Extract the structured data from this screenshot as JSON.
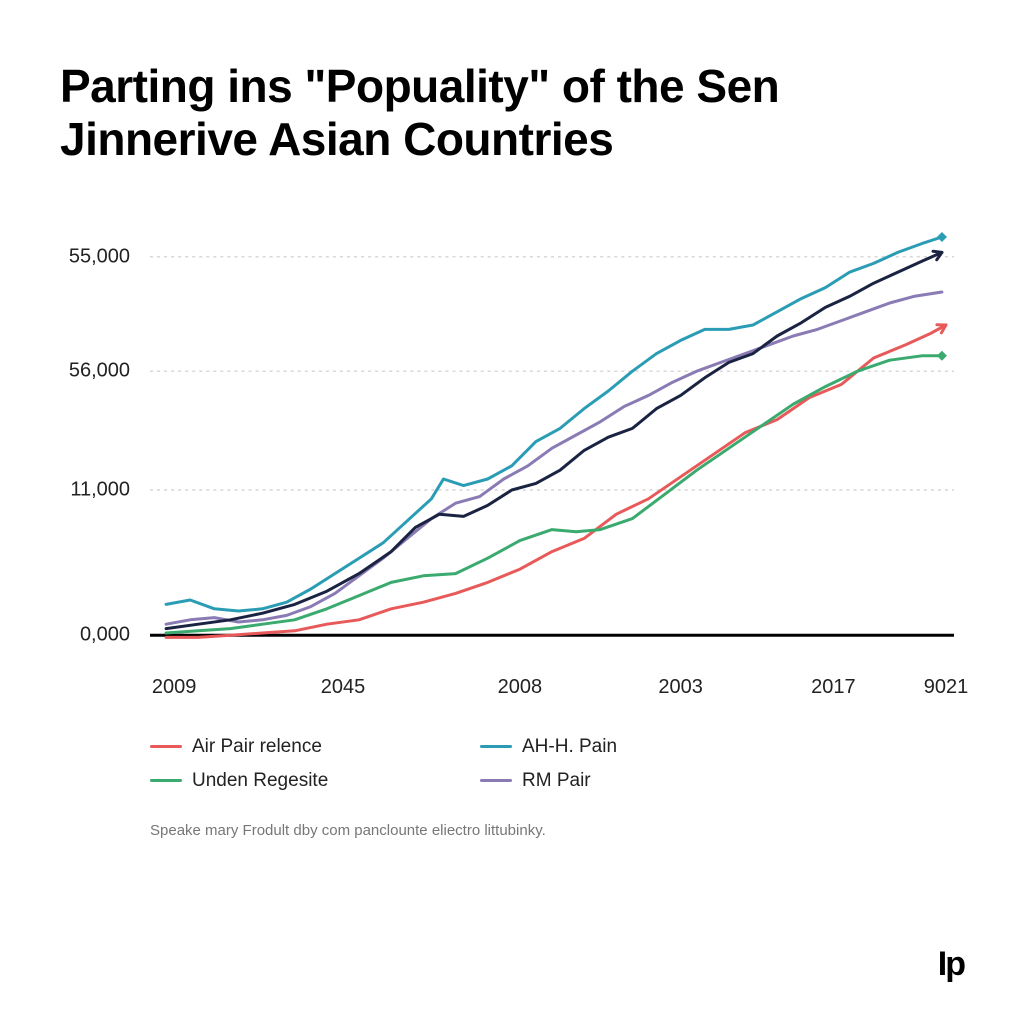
{
  "title": "Parting ins \"Popuality\" of the Sen Jinnerive Asian Countries",
  "chart": {
    "type": "line",
    "background_color": "#ffffff",
    "grid_color": "#cccccc",
    "grid_dash": "3,4",
    "axis_color": "#000000",
    "axis_width": 3,
    "title_fontsize": 46,
    "label_fontsize": 20,
    "line_width": 3,
    "y_axis": {
      "ticks": [
        {
          "pos": 0.07,
          "label": "55,000"
        },
        {
          "pos": 0.33,
          "label": "56,000"
        },
        {
          "pos": 0.6,
          "label": "11,000"
        },
        {
          "pos": 0.93,
          "label": "0,000"
        }
      ]
    },
    "x_axis": {
      "ticks": [
        {
          "pos": 0.03,
          "label": "2009"
        },
        {
          "pos": 0.24,
          "label": "2045"
        },
        {
          "pos": 0.46,
          "label": "2008"
        },
        {
          "pos": 0.66,
          "label": "2003"
        },
        {
          "pos": 0.85,
          "label": "2017"
        },
        {
          "pos": 0.99,
          "label": "9021"
        }
      ]
    },
    "series": [
      {
        "name": "Air Pair relence",
        "color": "#e85a5a",
        "points": [
          [
            0.02,
            0.935
          ],
          [
            0.06,
            0.935
          ],
          [
            0.1,
            0.93
          ],
          [
            0.14,
            0.925
          ],
          [
            0.18,
            0.92
          ],
          [
            0.22,
            0.905
          ],
          [
            0.26,
            0.895
          ],
          [
            0.3,
            0.87
          ],
          [
            0.34,
            0.855
          ],
          [
            0.38,
            0.835
          ],
          [
            0.42,
            0.81
          ],
          [
            0.46,
            0.78
          ],
          [
            0.5,
            0.74
          ],
          [
            0.54,
            0.71
          ],
          [
            0.58,
            0.655
          ],
          [
            0.62,
            0.62
          ],
          [
            0.66,
            0.57
          ],
          [
            0.7,
            0.52
          ],
          [
            0.74,
            0.47
          ],
          [
            0.78,
            0.44
          ],
          [
            0.82,
            0.39
          ],
          [
            0.86,
            0.36
          ],
          [
            0.9,
            0.3
          ],
          [
            0.94,
            0.27
          ],
          [
            0.97,
            0.245
          ],
          [
            0.99,
            0.225
          ]
        ],
        "arrow_end": true
      },
      {
        "name": "AH-H. Pain",
        "color": "#2a9db5",
        "points": [
          [
            0.02,
            0.86
          ],
          [
            0.05,
            0.85
          ],
          [
            0.08,
            0.87
          ],
          [
            0.11,
            0.875
          ],
          [
            0.14,
            0.87
          ],
          [
            0.17,
            0.855
          ],
          [
            0.2,
            0.825
          ],
          [
            0.23,
            0.79
          ],
          [
            0.26,
            0.755
          ],
          [
            0.29,
            0.72
          ],
          [
            0.32,
            0.67
          ],
          [
            0.35,
            0.62
          ],
          [
            0.365,
            0.575
          ],
          [
            0.39,
            0.59
          ],
          [
            0.42,
            0.575
          ],
          [
            0.45,
            0.545
          ],
          [
            0.48,
            0.49
          ],
          [
            0.51,
            0.46
          ],
          [
            0.54,
            0.415
          ],
          [
            0.57,
            0.375
          ],
          [
            0.6,
            0.33
          ],
          [
            0.63,
            0.29
          ],
          [
            0.66,
            0.26
          ],
          [
            0.69,
            0.235
          ],
          [
            0.72,
            0.235
          ],
          [
            0.75,
            0.225
          ],
          [
            0.78,
            0.195
          ],
          [
            0.81,
            0.165
          ],
          [
            0.84,
            0.14
          ],
          [
            0.87,
            0.105
          ],
          [
            0.9,
            0.085
          ],
          [
            0.93,
            0.06
          ],
          [
            0.96,
            0.04
          ],
          [
            0.985,
            0.025
          ]
        ],
        "end_marker": "diamond"
      },
      {
        "name": "Unden Regesite",
        "color": "#3aaa6f",
        "points": [
          [
            0.02,
            0.925
          ],
          [
            0.06,
            0.92
          ],
          [
            0.1,
            0.915
          ],
          [
            0.14,
            0.905
          ],
          [
            0.18,
            0.895
          ],
          [
            0.22,
            0.87
          ],
          [
            0.26,
            0.84
          ],
          [
            0.3,
            0.81
          ],
          [
            0.34,
            0.795
          ],
          [
            0.38,
            0.79
          ],
          [
            0.42,
            0.755
          ],
          [
            0.46,
            0.715
          ],
          [
            0.5,
            0.69
          ],
          [
            0.53,
            0.695
          ],
          [
            0.56,
            0.69
          ],
          [
            0.6,
            0.665
          ],
          [
            0.64,
            0.61
          ],
          [
            0.68,
            0.555
          ],
          [
            0.72,
            0.505
          ],
          [
            0.76,
            0.455
          ],
          [
            0.8,
            0.405
          ],
          [
            0.84,
            0.365
          ],
          [
            0.88,
            0.33
          ],
          [
            0.92,
            0.305
          ],
          [
            0.96,
            0.295
          ],
          [
            0.985,
            0.295
          ]
        ],
        "end_marker": "diamond"
      },
      {
        "name": "RM Pair",
        "color": "#8a7bb5",
        "points": [
          [
            0.02,
            0.905
          ],
          [
            0.05,
            0.895
          ],
          [
            0.08,
            0.89
          ],
          [
            0.11,
            0.9
          ],
          [
            0.14,
            0.895
          ],
          [
            0.17,
            0.885
          ],
          [
            0.2,
            0.865
          ],
          [
            0.23,
            0.835
          ],
          [
            0.26,
            0.795
          ],
          [
            0.29,
            0.755
          ],
          [
            0.32,
            0.71
          ],
          [
            0.35,
            0.665
          ],
          [
            0.38,
            0.63
          ],
          [
            0.41,
            0.615
          ],
          [
            0.44,
            0.575
          ],
          [
            0.47,
            0.545
          ],
          [
            0.5,
            0.505
          ],
          [
            0.53,
            0.475
          ],
          [
            0.56,
            0.445
          ],
          [
            0.59,
            0.41
          ],
          [
            0.62,
            0.385
          ],
          [
            0.65,
            0.355
          ],
          [
            0.68,
            0.33
          ],
          [
            0.71,
            0.31
          ],
          [
            0.74,
            0.29
          ],
          [
            0.77,
            0.27
          ],
          [
            0.8,
            0.25
          ],
          [
            0.83,
            0.235
          ],
          [
            0.86,
            0.215
          ],
          [
            0.89,
            0.195
          ],
          [
            0.92,
            0.175
          ],
          [
            0.95,
            0.16
          ],
          [
            0.985,
            0.15
          ]
        ]
      },
      {
        "name": "series-dark",
        "color": "#1a2442",
        "hidden_in_legend": true,
        "points": [
          [
            0.02,
            0.915
          ],
          [
            0.06,
            0.905
          ],
          [
            0.1,
            0.895
          ],
          [
            0.14,
            0.88
          ],
          [
            0.18,
            0.86
          ],
          [
            0.22,
            0.83
          ],
          [
            0.26,
            0.79
          ],
          [
            0.3,
            0.74
          ],
          [
            0.33,
            0.685
          ],
          [
            0.36,
            0.655
          ],
          [
            0.39,
            0.66
          ],
          [
            0.42,
            0.635
          ],
          [
            0.45,
            0.6
          ],
          [
            0.48,
            0.585
          ],
          [
            0.51,
            0.555
          ],
          [
            0.54,
            0.51
          ],
          [
            0.57,
            0.48
          ],
          [
            0.6,
            0.46
          ],
          [
            0.63,
            0.415
          ],
          [
            0.66,
            0.385
          ],
          [
            0.69,
            0.345
          ],
          [
            0.72,
            0.31
          ],
          [
            0.75,
            0.29
          ],
          [
            0.78,
            0.25
          ],
          [
            0.81,
            0.22
          ],
          [
            0.84,
            0.185
          ],
          [
            0.87,
            0.16
          ],
          [
            0.9,
            0.13
          ],
          [
            0.93,
            0.105
          ],
          [
            0.96,
            0.08
          ],
          [
            0.985,
            0.06
          ]
        ],
        "arrow_end": true
      }
    ]
  },
  "legend_layout": {
    "columns": 2,
    "fontsize": 19
  },
  "footer": "Speake mary Frodult dby com panclounte eliectro littubinky.",
  "logo_text": "Ip"
}
